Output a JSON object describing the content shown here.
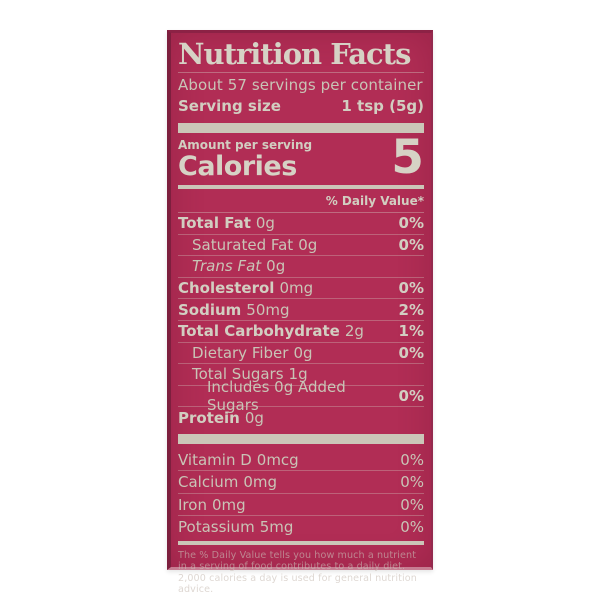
{
  "label": {
    "title": "Nutrition Facts",
    "servings_per_container": "About 57 servings per container",
    "serving_size": {
      "label": "Serving size",
      "value": "1 tsp (5g)"
    },
    "amount_per_serving": "Amount per serving",
    "calories": {
      "label": "Calories",
      "value": "5"
    },
    "daily_value_header": "% Daily Value*",
    "nutrients": [
      {
        "name": "Total Fat",
        "amount": "0g",
        "dv": "0%",
        "bold": true,
        "indent": 0
      },
      {
        "name": "Saturated Fat",
        "amount": "0g",
        "dv": "0%",
        "bold": false,
        "indent": 1
      },
      {
        "name": "Trans Fat",
        "amount": "0g",
        "dv": "",
        "bold": false,
        "indent": 1,
        "italic": true
      },
      {
        "name": "Cholesterol",
        "amount": "0mg",
        "dv": "0%",
        "bold": true,
        "indent": 0
      },
      {
        "name": "Sodium",
        "amount": "50mg",
        "dv": "2%",
        "bold": true,
        "indent": 0
      },
      {
        "name": "Total Carbohydrate",
        "amount": "2g",
        "dv": "1%",
        "bold": true,
        "indent": 0
      },
      {
        "name": "Dietary Fiber",
        "amount": "0g",
        "dv": "0%",
        "bold": false,
        "indent": 1
      },
      {
        "name": "Total Sugars",
        "amount": "1g",
        "dv": "",
        "bold": false,
        "indent": 1
      },
      {
        "name": "Includes 0g Added Sugars",
        "amount": "",
        "dv": "0%",
        "bold": false,
        "indent": 2
      },
      {
        "name": "Protein",
        "amount": "0g",
        "dv": "",
        "bold": true,
        "indent": 0
      }
    ],
    "micronutrients": [
      {
        "name": "Vitamin D",
        "amount": "0mcg",
        "dv": "0%"
      },
      {
        "name": "Calcium",
        "amount": "0mg",
        "dv": "0%"
      },
      {
        "name": "Iron",
        "amount": "0mg",
        "dv": "0%"
      },
      {
        "name": "Potassium",
        "amount": "5mg",
        "dv": "0%"
      }
    ],
    "footnote": "The % Daily Value tells you how much a nutrient in a serving of food contributes to a daily diet. 2,000 calories a day is used for general nutrition advice.",
    "colors": {
      "label_background": "#b12d55",
      "text": "#c9c4b6",
      "bold_text": "#d6d2c5",
      "separator_bar": "#cbc6b8",
      "photo_background": "#ffffff"
    }
  }
}
